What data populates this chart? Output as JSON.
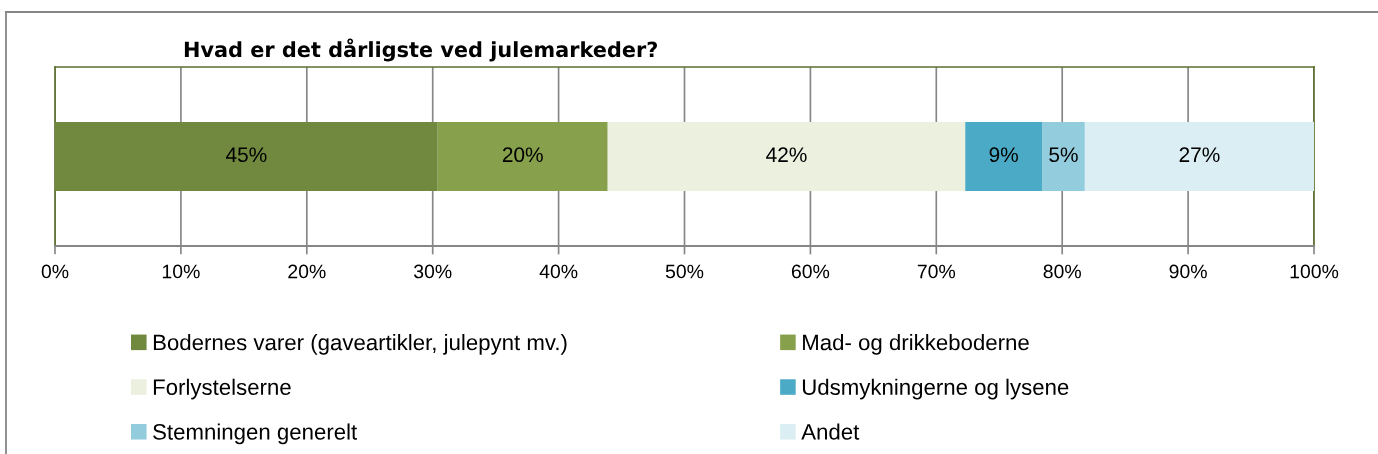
{
  "chart_data": {
    "type": "bar",
    "title": "Hvad er det dårligste ved julemarkeder?",
    "orientation": "horizontal",
    "stacked": true,
    "categories": [
      null
    ],
    "series": [
      {
        "name": "Bodernes varer (gaveartikler, julepynt mv.)",
        "color": "#71893f",
        "values": [
          30.4
        ]
      },
      {
        "name": "Mad- og drikkeboderne",
        "color": "#87a04c",
        "values": [
          13.5
        ]
      },
      {
        "name": "Forlystelserne",
        "color": "#ebf0df",
        "values": [
          28.4
        ]
      },
      {
        "name": "Udsmykningerne og lysene",
        "color": "#4babc6",
        "values": [
          6.1
        ]
      },
      {
        "name": "Stemningen generelt",
        "color": "#93cddd",
        "values": [
          3.4
        ]
      },
      {
        "name": "Andet",
        "color": "#dbeef3",
        "values": [
          18.2
        ]
      }
    ],
    "annotations": [
      "45%",
      "20%",
      "42%",
      "9%",
      "5%",
      "27%"
    ],
    "xlim": [
      0,
      100
    ],
    "xticks": [
      {
        "value": 0,
        "label": "0%"
      },
      {
        "value": 10,
        "label": "10%"
      },
      {
        "value": 20,
        "label": "20%"
      },
      {
        "value": 30,
        "label": "30%"
      },
      {
        "value": 40,
        "label": "40%"
      },
      {
        "value": 50,
        "label": "50%"
      },
      {
        "value": 60,
        "label": "60%"
      },
      {
        "value": 70,
        "label": "70%"
      },
      {
        "value": 80,
        "label": "80%"
      },
      {
        "value": 90,
        "label": "90%"
      },
      {
        "value": 100,
        "label": "100%"
      }
    ],
    "grid": "x",
    "legend": "bottom",
    "tick_labels": "x"
  }
}
